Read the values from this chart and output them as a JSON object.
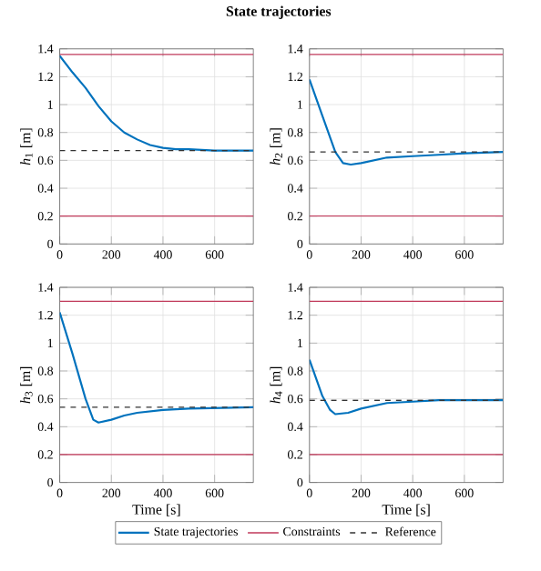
{
  "chart_data": [
    {
      "type": "line",
      "title": "State trajectories",
      "ylabel": "*h*$_{1}$ [m]",
      "xlim": [
        0,
        750
      ],
      "ylim": [
        0,
        1.4
      ],
      "xticks": [
        0,
        200,
        400,
        600
      ],
      "yticks": [
        0,
        0.2,
        0.4,
        0.6,
        0.8,
        1,
        1.2,
        1.4
      ],
      "grid": true,
      "legend": "bottom",
      "series": [
        {
          "name": "State trajectories",
          "color": "#0072bd",
          "x": [
            0,
            50,
            100,
            150,
            200,
            250,
            300,
            350,
            400,
            450,
            500,
            600,
            750
          ],
          "values": [
            1.35,
            1.23,
            1.12,
            0.99,
            0.88,
            0.8,
            0.75,
            0.71,
            0.69,
            0.68,
            0.68,
            0.67,
            0.67
          ]
        },
        {
          "name": "Constraints",
          "color": "#c0395a",
          "x": [
            0,
            750
          ],
          "values": [
            1.36,
            1.36
          ]
        },
        {
          "color": "#c0395a",
          "x": [
            0,
            750
          ],
          "values": [
            0.2,
            0.2
          ]
        },
        {
          "name": "Reference",
          "color": "#333333",
          "line_style": "dashed",
          "x": [
            0,
            750
          ],
          "values": [
            0.67,
            0.67
          ]
        }
      ]
    },
    {
      "type": "line",
      "ylabel": "*h*$_{2}$ [m]",
      "xlim": [
        0,
        750
      ],
      "ylim": [
        0,
        1.4
      ],
      "xticks": [
        0,
        200,
        400,
        600
      ],
      "yticks": [
        0,
        0.2,
        0.4,
        0.6,
        0.8,
        1,
        1.2,
        1.4
      ],
      "grid": true,
      "series": [
        {
          "color": "#0072bd",
          "x": [
            0,
            50,
            100,
            130,
            160,
            200,
            250,
            300,
            400,
            500,
            600,
            750
          ],
          "values": [
            1.18,
            0.92,
            0.66,
            0.58,
            0.57,
            0.58,
            0.6,
            0.62,
            0.63,
            0.64,
            0.65,
            0.66
          ]
        },
        {
          "color": "#c0395a",
          "x": [
            0,
            750
          ],
          "values": [
            1.36,
            1.36
          ]
        },
        {
          "color": "#c0395a",
          "x": [
            0,
            750
          ],
          "values": [
            0.2,
            0.2
          ]
        },
        {
          "color": "#333333",
          "line_style": "dashed",
          "x": [
            0,
            750
          ],
          "values": [
            0.66,
            0.66
          ]
        }
      ]
    },
    {
      "type": "line",
      "xlabel": "Time [s]",
      "ylabel": "*h*$_{3}$ [m]",
      "xlim": [
        0,
        750
      ],
      "ylim": [
        0,
        1.4
      ],
      "xticks": [
        0,
        200,
        400,
        600
      ],
      "yticks": [
        0,
        0.2,
        0.4,
        0.6,
        0.8,
        1,
        1.2,
        1.4
      ],
      "grid": true,
      "series": [
        {
          "color": "#0072bd",
          "x": [
            0,
            50,
            100,
            130,
            150,
            200,
            250,
            300,
            400,
            500,
            750
          ],
          "values": [
            1.22,
            0.92,
            0.6,
            0.45,
            0.43,
            0.45,
            0.48,
            0.5,
            0.52,
            0.53,
            0.54
          ]
        },
        {
          "color": "#c0395a",
          "x": [
            0,
            750
          ],
          "values": [
            1.3,
            1.3
          ]
        },
        {
          "color": "#c0395a",
          "x": [
            0,
            750
          ],
          "values": [
            0.2,
            0.2
          ]
        },
        {
          "color": "#333333",
          "line_style": "dashed",
          "x": [
            0,
            750
          ],
          "values": [
            0.54,
            0.54
          ]
        }
      ]
    },
    {
      "type": "line",
      "xlabel": "Time [s]",
      "ylabel": "*h*$_{4}$ [m]",
      "xlim": [
        0,
        750
      ],
      "ylim": [
        0,
        1.4
      ],
      "xticks": [
        0,
        200,
        400,
        600
      ],
      "yticks": [
        0,
        0.2,
        0.4,
        0.6,
        0.8,
        1,
        1.2,
        1.4
      ],
      "grid": true,
      "series": [
        {
          "color": "#0072bd",
          "x": [
            0,
            50,
            80,
            100,
            150,
            200,
            300,
            400,
            500,
            750
          ],
          "values": [
            0.88,
            0.62,
            0.52,
            0.49,
            0.5,
            0.53,
            0.57,
            0.58,
            0.59,
            0.59
          ]
        },
        {
          "color": "#c0395a",
          "x": [
            0,
            750
          ],
          "values": [
            1.3,
            1.3
          ]
        },
        {
          "color": "#c0395a",
          "x": [
            0,
            750
          ],
          "values": [
            0.2,
            0.2
          ]
        },
        {
          "color": "#333333",
          "line_style": "dashed",
          "x": [
            0,
            750
          ],
          "values": [
            0.59,
            0.59
          ]
        }
      ]
    }
  ]
}
